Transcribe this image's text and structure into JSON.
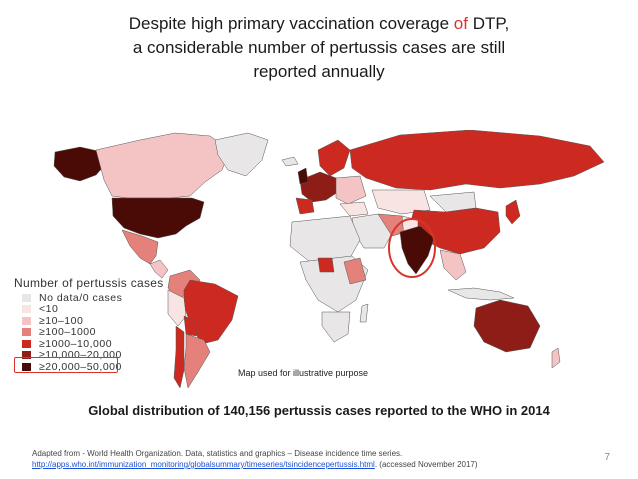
{
  "title": {
    "part1": "Despite high primary vaccination coverage ",
    "highlight": "of",
    "part2": " DTP,",
    "line2": "a considerable number of pertussis cases are still",
    "line3": "reported annually"
  },
  "legend": {
    "title": "Number of pertussis cases",
    "items": [
      {
        "label": "No data/0 cases",
        "color": "#e8e6e6"
      },
      {
        "label": "<10",
        "color": "#f9e4e4"
      },
      {
        "label": "≥10–100",
        "color": "#f4c4c4"
      },
      {
        "label": "≥100–1000",
        "color": "#e4817b"
      },
      {
        "label": "≥1000–10,000",
        "color": "#cc2a21"
      },
      {
        "label": "≥10,000–20,000",
        "color": "#8e1c17"
      },
      {
        "label": "≥20,000–50,000",
        "color": "#4a0b07"
      }
    ]
  },
  "map_note": "Map used for illustrative purpose",
  "caption": "Global distribution of 140,156 pertussis cases reported to the WHO in 2014",
  "source": {
    "line1": "Adapted from - World Health Organization. Data, statistics and graphics – Disease incidence time series.",
    "url": "http://apps.who.int/immunization_monitoring/globalsummary/timeseries/tsincidencepertussis.html",
    "suffix": ". (accessed November 2017)"
  },
  "page_number": "7",
  "colors": {
    "highlight_red": "#d9342b",
    "land_border": "#555555"
  }
}
